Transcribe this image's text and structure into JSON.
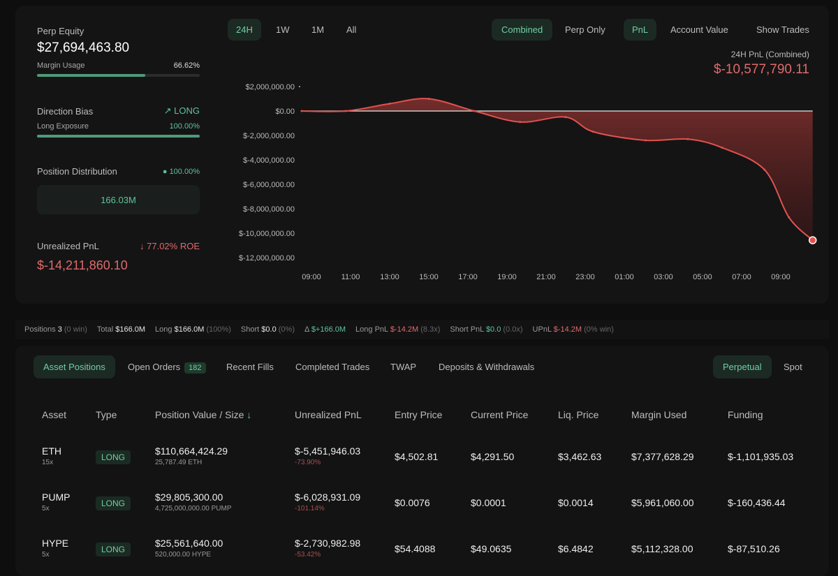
{
  "left": {
    "perp_equity_label": "Perp Equity",
    "perp_equity": "$27,694,463.80",
    "margin_usage_label": "Margin Usage",
    "margin_usage": "66.62%",
    "margin_usage_fraction": 0.6662,
    "direction_bias_label": "Direction Bias",
    "direction_bias": "LONG",
    "long_exposure_label": "Long Exposure",
    "long_exposure": "100.00%",
    "long_exposure_fraction": 1.0,
    "position_distribution_label": "Position Distribution",
    "position_distribution_pct": "100.00%",
    "distribution_value": "166.03M",
    "unrealized_pnl_label": "Unrealized PnL",
    "roe": "77.02% ROE",
    "unrealized_pnl": "$-14,211,860.10"
  },
  "chart_controls": {
    "ranges": [
      "24H",
      "1W",
      "1M",
      "All"
    ],
    "active_range": "24H",
    "modes": [
      "Combined",
      "Perp Only"
    ],
    "active_mode": "Combined",
    "metrics": [
      "PnL",
      "Account Value"
    ],
    "active_metric": "PnL",
    "show_trades": "Show Trades"
  },
  "chart_header": {
    "title": "24H PnL (Combined)",
    "value": "$-10,577,790.11"
  },
  "chart_data": {
    "type": "area",
    "ylim": [
      -12000000,
      2000000
    ],
    "yticks": [
      2000000,
      0,
      -2000000,
      -4000000,
      -6000000,
      -8000000,
      -10000000,
      -12000000
    ],
    "ytick_labels": [
      "$2,000,000.00",
      "$0.00",
      "$-2,000,000.00",
      "$-4,000,000.00",
      "$-6,000,000.00",
      "$-8,000,000.00",
      "$-10,000,000.00",
      "$-12,000,000.00"
    ],
    "xtick_labels": [
      "09:00",
      "11:00",
      "13:00",
      "15:00",
      "17:00",
      "19:00",
      "21:00",
      "23:00",
      "01:00",
      "03:00",
      "05:00",
      "07:00",
      "09:00"
    ],
    "points": [
      {
        "t": "08:30",
        "v": 0
      },
      {
        "t": "10:45",
        "v": 0
      },
      {
        "t": "13:00",
        "v": 600000
      },
      {
        "t": "15:00",
        "v": 1000000
      },
      {
        "t": "17:20",
        "v": 0
      },
      {
        "t": "19:40",
        "v": -900000
      },
      {
        "t": "22:00",
        "v": -500000
      },
      {
        "t": "23:25",
        "v": -1700000
      },
      {
        "t": "02:05",
        "v": -2400000
      },
      {
        "t": "04:15",
        "v": -2300000
      },
      {
        "t": "06:00",
        "v": -3000000
      },
      {
        "t": "08:10",
        "v": -4800000
      },
      {
        "t": "09:25",
        "v": -8700000
      },
      {
        "t": "10:38",
        "v": -10577790.11
      }
    ],
    "line_color": "#e0524f"
  },
  "summary": [
    {
      "label": "Positions",
      "value": "3",
      "extra": "(0 win)",
      "color": "#e6e6e6"
    },
    {
      "label": "Total",
      "value": "$166.0M",
      "extra": "",
      "color": "#e6e6e6"
    },
    {
      "label": "Long",
      "value": "$166.0M",
      "extra": "(100%)",
      "color": "#e6e6e6"
    },
    {
      "label": "Short",
      "value": "$0.0",
      "extra": "(0%)",
      "color": "#e6e6e6"
    },
    {
      "label": "Δ",
      "value": "$+166.0M",
      "extra": "",
      "color": "#5fc39a"
    },
    {
      "label": "Long PnL",
      "value": "$-14.2M",
      "extra": "(8.3x)",
      "color": "#e06a6a"
    },
    {
      "label": "Short PnL",
      "value": "$0.0",
      "extra": "(0.0x)",
      "color": "#5fc39a"
    },
    {
      "label": "UPnL",
      "value": "$-14.2M",
      "extra": "(0% win)",
      "color": "#e06a6a"
    }
  ],
  "tabs": {
    "items": [
      "Asset Positions",
      "Open Orders",
      "Recent Fills",
      "Completed Trades",
      "TWAP",
      "Deposits & Withdrawals"
    ],
    "open_orders_count": "182",
    "active": "Asset Positions",
    "market": [
      "Perpetual",
      "Spot"
    ],
    "active_market": "Perpetual"
  },
  "table": {
    "headers": [
      "Asset",
      "Type",
      "Position Value / Size",
      "Unrealized PnL",
      "Entry Price",
      "Current Price",
      "Liq. Price",
      "Margin Used",
      "Funding"
    ],
    "sort_arrow": "↓",
    "rows": [
      {
        "asset": "ETH",
        "lev": "15x",
        "type": "LONG",
        "value": "$110,664,424.29",
        "size": "25,787.49 ETH",
        "pnl": "$-5,451,946.03",
        "pnl_pct": "-73.90%",
        "entry": "$4,502.81",
        "current": "$4,291.50",
        "liq": "$3,462.63",
        "margin": "$7,377,628.29",
        "funding": "$-1,101,935.03"
      },
      {
        "asset": "PUMP",
        "lev": "5x",
        "type": "LONG",
        "value": "$29,805,300.00",
        "size": "4,725,000,000.00 PUMP",
        "pnl": "$-6,028,931.09",
        "pnl_pct": "-101.14%",
        "entry": "$0.0076",
        "current": "$0.0001",
        "liq": "$0.0014",
        "margin": "$5,961,060.00",
        "funding": "$-160,436.44"
      },
      {
        "asset": "HYPE",
        "lev": "5x",
        "type": "LONG",
        "value": "$25,561,640.00",
        "size": "520,000.00 HYPE",
        "pnl": "$-2,730,982.98",
        "pnl_pct": "-53.42%",
        "entry": "$54.4088",
        "current": "$49.0635",
        "liq": "$6.4842",
        "margin": "$5,112,328.00",
        "funding": "$-87,510.26"
      }
    ]
  }
}
